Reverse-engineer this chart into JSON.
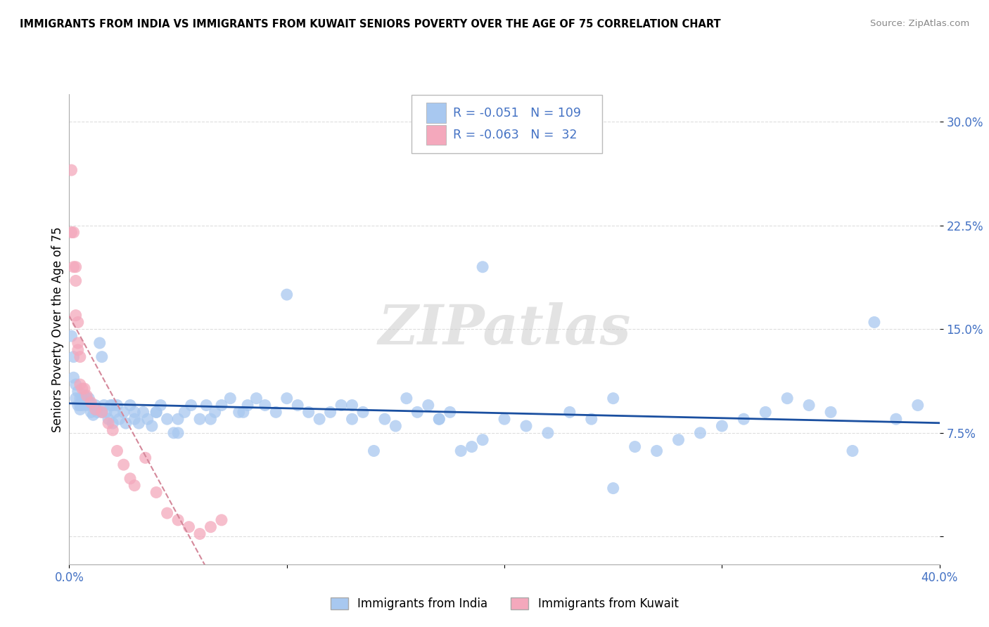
{
  "title": "IMMIGRANTS FROM INDIA VS IMMIGRANTS FROM KUWAIT SENIORS POVERTY OVER THE AGE OF 75 CORRELATION CHART",
  "source": "Source: ZipAtlas.com",
  "ylabel": "Seniors Poverty Over the Age of 75",
  "xlim": [
    0.0,
    0.4
  ],
  "ylim": [
    -0.02,
    0.32
  ],
  "india_color": "#A8C8F0",
  "kuwait_color": "#F4A8BC",
  "india_line_color": "#1A4FA0",
  "kuwait_line_color": "#E8B0C0",
  "legend_india_R": "-0.051",
  "legend_india_N": "109",
  "legend_kuwait_R": "-0.063",
  "legend_kuwait_N": " 32",
  "watermark": "ZIPatlas",
  "text_color": "#4472C4",
  "india_scatter_x": [
    0.001,
    0.002,
    0.002,
    0.003,
    0.003,
    0.004,
    0.004,
    0.005,
    0.005,
    0.005,
    0.006,
    0.006,
    0.007,
    0.007,
    0.008,
    0.008,
    0.009,
    0.009,
    0.01,
    0.01,
    0.011,
    0.012,
    0.013,
    0.014,
    0.015,
    0.016,
    0.017,
    0.018,
    0.019,
    0.02,
    0.021,
    0.022,
    0.023,
    0.025,
    0.026,
    0.028,
    0.03,
    0.032,
    0.034,
    0.036,
    0.038,
    0.04,
    0.042,
    0.045,
    0.048,
    0.05,
    0.053,
    0.056,
    0.06,
    0.063,
    0.067,
    0.07,
    0.074,
    0.078,
    0.082,
    0.086,
    0.09,
    0.095,
    0.1,
    0.105,
    0.11,
    0.115,
    0.12,
    0.125,
    0.13,
    0.135,
    0.14,
    0.145,
    0.15,
    0.155,
    0.16,
    0.165,
    0.17,
    0.175,
    0.18,
    0.185,
    0.19,
    0.2,
    0.21,
    0.22,
    0.23,
    0.24,
    0.25,
    0.26,
    0.27,
    0.28,
    0.29,
    0.3,
    0.31,
    0.32,
    0.33,
    0.34,
    0.35,
    0.36,
    0.37,
    0.38,
    0.39,
    0.25,
    0.19,
    0.17,
    0.13,
    0.1,
    0.08,
    0.065,
    0.05,
    0.04,
    0.03,
    0.02,
    0.015
  ],
  "india_scatter_y": [
    0.145,
    0.13,
    0.115,
    0.11,
    0.1,
    0.105,
    0.095,
    0.1,
    0.095,
    0.092,
    0.1,
    0.095,
    0.102,
    0.098,
    0.1,
    0.095,
    0.1,
    0.097,
    0.095,
    0.09,
    0.088,
    0.095,
    0.09,
    0.14,
    0.13,
    0.095,
    0.09,
    0.085,
    0.095,
    0.082,
    0.09,
    0.095,
    0.085,
    0.09,
    0.082,
    0.095,
    0.09,
    0.082,
    0.09,
    0.085,
    0.08,
    0.09,
    0.095,
    0.085,
    0.075,
    0.085,
    0.09,
    0.095,
    0.085,
    0.095,
    0.09,
    0.095,
    0.1,
    0.09,
    0.095,
    0.1,
    0.095,
    0.09,
    0.175,
    0.095,
    0.09,
    0.085,
    0.09,
    0.095,
    0.085,
    0.09,
    0.062,
    0.085,
    0.08,
    0.1,
    0.09,
    0.095,
    0.085,
    0.09,
    0.062,
    0.065,
    0.195,
    0.085,
    0.08,
    0.075,
    0.09,
    0.085,
    0.035,
    0.065,
    0.062,
    0.07,
    0.075,
    0.08,
    0.085,
    0.09,
    0.1,
    0.095,
    0.09,
    0.062,
    0.155,
    0.085,
    0.095,
    0.1,
    0.07,
    0.085,
    0.095,
    0.1,
    0.09,
    0.085,
    0.075,
    0.09,
    0.085,
    0.095,
    0.09
  ],
  "kuwait_scatter_x": [
    0.001,
    0.001,
    0.002,
    0.002,
    0.003,
    0.003,
    0.003,
    0.004,
    0.004,
    0.005,
    0.005,
    0.006,
    0.007,
    0.008,
    0.01,
    0.012,
    0.015,
    0.018,
    0.02,
    0.022,
    0.025,
    0.028,
    0.03,
    0.035,
    0.04,
    0.045,
    0.05,
    0.055,
    0.06,
    0.065,
    0.07,
    0.004
  ],
  "kuwait_scatter_y": [
    0.265,
    0.22,
    0.22,
    0.195,
    0.195,
    0.185,
    0.16,
    0.155,
    0.14,
    0.13,
    0.11,
    0.107,
    0.107,
    0.102,
    0.097,
    0.092,
    0.09,
    0.082,
    0.077,
    0.062,
    0.052,
    0.042,
    0.037,
    0.057,
    0.032,
    0.017,
    0.012,
    0.007,
    0.002,
    0.007,
    0.012,
    0.135
  ]
}
